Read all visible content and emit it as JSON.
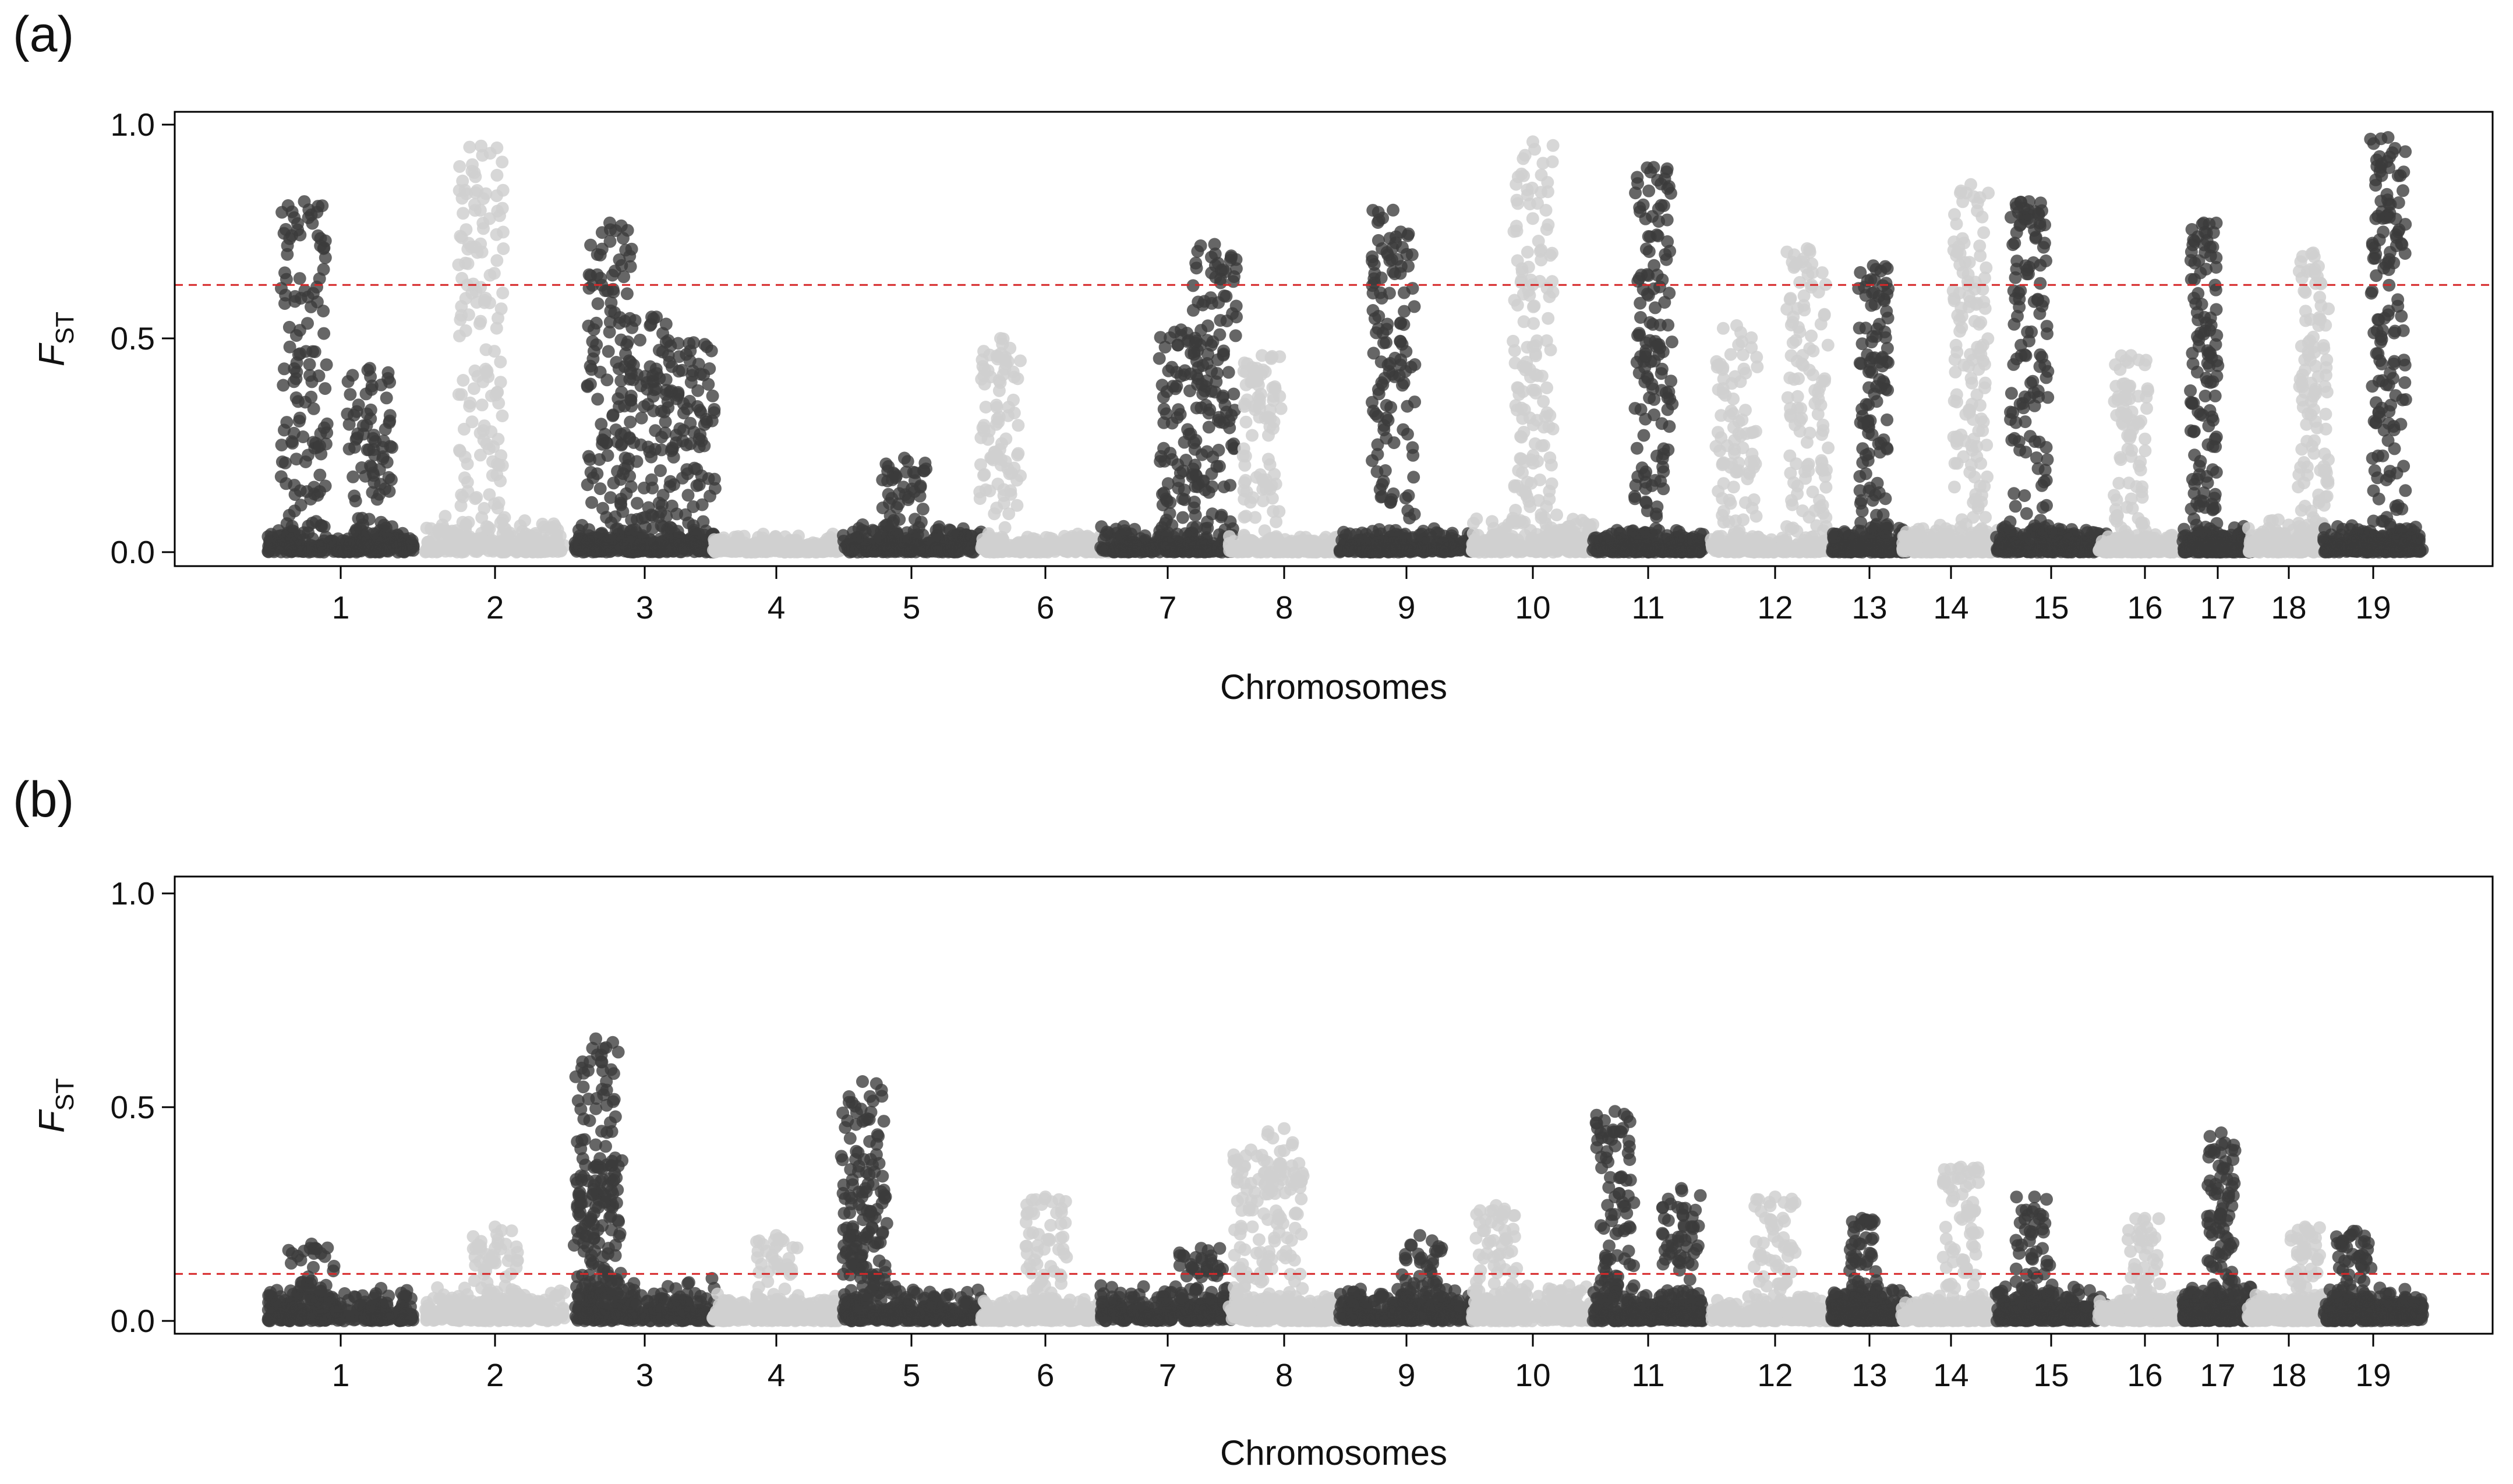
{
  "chart_data": [
    {
      "type": "scatter",
      "panel_label": "(a)",
      "xlabel": "Chromosomes",
      "ylabel": "F",
      "ylabel_subscript": "ST",
      "ylim": [
        0,
        1.0
      ],
      "yticks": [
        0.0,
        0.5,
        1.0
      ],
      "ytick_labels": [
        "0.0",
        "0.5",
        "1.0"
      ],
      "threshold": 0.625,
      "threshold_color": "#d62728",
      "grid": false,
      "chromosomes": [
        "1",
        "2",
        "3",
        "4",
        "5",
        "6",
        "7",
        "8",
        "9",
        "10",
        "11",
        "12",
        "13",
        "14",
        "15",
        "16",
        "17",
        "18",
        "19"
      ],
      "series": [
        {
          "chrom": "1",
          "peaks": [
            {
              "pos": 0.25,
              "height": 0.82
            },
            {
              "pos": 0.7,
              "height": 0.43
            }
          ],
          "baseline": 0.03
        },
        {
          "chrom": "2",
          "peaks": [
            {
              "pos": 0.4,
              "height": 0.95
            }
          ],
          "baseline": 0.04
        },
        {
          "chrom": "3",
          "peaks": [
            {
              "pos": 0.25,
              "height": 0.77
            },
            {
              "pos": 0.55,
              "height": 0.55
            },
            {
              "pos": 0.85,
              "height": 0.49
            }
          ],
          "baseline": 0.03
        },
        {
          "chrom": "4",
          "peaks": [],
          "baseline": 0.02
        },
        {
          "chrom": "5",
          "peaks": [
            {
              "pos": 0.45,
              "height": 0.22
            }
          ],
          "baseline": 0.03
        },
        {
          "chrom": "6",
          "peaks": [
            {
              "pos": 0.15,
              "height": 0.5
            }
          ],
          "baseline": 0.02
        },
        {
          "chrom": "7",
          "peaks": [
            {
              "pos": 0.6,
              "height": 0.52
            },
            {
              "pos": 0.85,
              "height": 0.72
            }
          ],
          "baseline": 0.03
        },
        {
          "chrom": "8",
          "peaks": [
            {
              "pos": 0.3,
              "height": 0.46
            }
          ],
          "baseline": 0.02
        },
        {
          "chrom": "9",
          "peaks": [
            {
              "pos": 0.4,
              "height": 0.8
            }
          ],
          "baseline": 0.03
        },
        {
          "chrom": "10",
          "peaks": [
            {
              "pos": 0.5,
              "height": 0.96
            }
          ],
          "baseline": 0.04
        },
        {
          "chrom": "11",
          "peaks": [
            {
              "pos": 0.55,
              "height": 0.9
            }
          ],
          "baseline": 0.03
        },
        {
          "chrom": "12",
          "peaks": [
            {
              "pos": 0.2,
              "height": 0.53
            },
            {
              "pos": 0.75,
              "height": 0.71
            }
          ],
          "baseline": 0.02
        },
        {
          "chrom": "13",
          "peaks": [
            {
              "pos": 0.55,
              "height": 0.67
            }
          ],
          "baseline": 0.03
        },
        {
          "chrom": "14",
          "peaks": [
            {
              "pos": 0.7,
              "height": 0.86
            }
          ],
          "baseline": 0.03
        },
        {
          "chrom": "15",
          "peaks": [
            {
              "pos": 0.3,
              "height": 0.82
            }
          ],
          "baseline": 0.03
        },
        {
          "chrom": "16",
          "peaks": [
            {
              "pos": 0.35,
              "height": 0.46
            }
          ],
          "baseline": 0.02
        },
        {
          "chrom": "17",
          "peaks": [
            {
              "pos": 0.3,
              "height": 0.77
            }
          ],
          "baseline": 0.03
        },
        {
          "chrom": "18",
          "peaks": [
            {
              "pos": 0.8,
              "height": 0.7
            }
          ],
          "baseline": 0.04
        },
        {
          "chrom": "19",
          "peaks": [
            {
              "pos": 0.65,
              "height": 0.97
            }
          ],
          "baseline": 0.03
        }
      ]
    },
    {
      "type": "scatter",
      "panel_label": "(b)",
      "xlabel": "Chromosomes",
      "ylabel": "F",
      "ylabel_subscript": "ST",
      "ylim": [
        0,
        1.0
      ],
      "yticks": [
        0.0,
        0.5,
        1.0
      ],
      "ytick_labels": [
        "0.0",
        "0.5",
        "1.0"
      ],
      "threshold": 0.11,
      "threshold_color": "#d62728",
      "grid": false,
      "chromosomes": [
        "1",
        "2",
        "3",
        "4",
        "5",
        "6",
        "7",
        "8",
        "9",
        "10",
        "11",
        "12",
        "13",
        "14",
        "15",
        "16",
        "17",
        "18",
        "19"
      ],
      "series": [
        {
          "chrom": "1",
          "peaks": [
            {
              "pos": 0.3,
              "height": 0.18
            }
          ],
          "baseline": 0.04
        },
        {
          "chrom": "2",
          "peaks": [
            {
              "pos": 0.5,
              "height": 0.22
            }
          ],
          "baseline": 0.04
        },
        {
          "chrom": "3",
          "peaks": [
            {
              "pos": 0.15,
              "height": 0.66
            },
            {
              "pos": 0.18,
              "height": 0.38
            }
          ],
          "baseline": 0.05
        },
        {
          "chrom": "4",
          "peaks": [
            {
              "pos": 0.5,
              "height": 0.2
            }
          ],
          "baseline": 0.03
        },
        {
          "chrom": "5",
          "peaks": [
            {
              "pos": 0.15,
              "height": 0.56
            },
            {
              "pos": 0.17,
              "height": 0.31
            }
          ],
          "baseline": 0.04
        },
        {
          "chrom": "6",
          "peaks": [
            {
              "pos": 0.5,
              "height": 0.29
            }
          ],
          "baseline": 0.03
        },
        {
          "chrom": "7",
          "peaks": [
            {
              "pos": 0.75,
              "height": 0.17
            }
          ],
          "baseline": 0.04
        },
        {
          "chrom": "8",
          "peaks": [
            {
              "pos": 0.5,
              "height": 0.45
            },
            {
              "pos": 0.2,
              "height": 0.4
            }
          ],
          "baseline": 0.03
        },
        {
          "chrom": "9",
          "peaks": [
            {
              "pos": 0.6,
              "height": 0.2
            }
          ],
          "baseline": 0.04
        },
        {
          "chrom": "10",
          "peaks": [
            {
              "pos": 0.2,
              "height": 0.27
            }
          ],
          "baseline": 0.04
        },
        {
          "chrom": "11",
          "peaks": [
            {
              "pos": 0.2,
              "height": 0.49
            },
            {
              "pos": 0.8,
              "height": 0.31
            }
          ],
          "baseline": 0.04
        },
        {
          "chrom": "12",
          "peaks": [
            {
              "pos": 0.5,
              "height": 0.29
            }
          ],
          "baseline": 0.03
        },
        {
          "chrom": "13",
          "peaks": [
            {
              "pos": 0.4,
              "height": 0.24
            }
          ],
          "baseline": 0.04
        },
        {
          "chrom": "14",
          "peaks": [
            {
              "pos": 0.6,
              "height": 0.36
            }
          ],
          "baseline": 0.03
        },
        {
          "chrom": "15",
          "peaks": [
            {
              "pos": 0.35,
              "height": 0.29
            }
          ],
          "baseline": 0.04
        },
        {
          "chrom": "16",
          "peaks": [
            {
              "pos": 0.5,
              "height": 0.24
            }
          ],
          "baseline": 0.03
        },
        {
          "chrom": "17",
          "peaks": [
            {
              "pos": 0.55,
              "height": 0.44
            }
          ],
          "baseline": 0.04
        },
        {
          "chrom": "18",
          "peaks": [
            {
              "pos": 0.7,
              "height": 0.22
            }
          ],
          "baseline": 0.03
        },
        {
          "chrom": "19",
          "peaks": [
            {
              "pos": 0.3,
              "height": 0.21
            }
          ],
          "baseline": 0.04
        }
      ]
    }
  ],
  "colors": {
    "odd_chromosome": "#3b3b3b",
    "even_chromosome": "#d0d0d0",
    "axis": "#000000",
    "threshold": "#d62728"
  }
}
